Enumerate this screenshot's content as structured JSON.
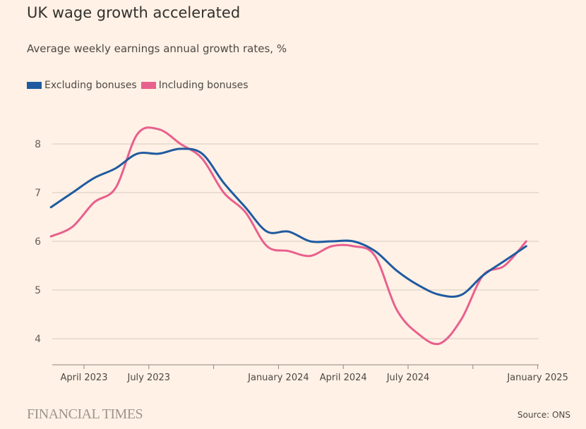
{
  "header": {
    "title": "UK wage growth accelerated",
    "subtitle": "Average weekly earnings annual growth rates, %"
  },
  "footer": {
    "brand": "FINANCIAL TIMES",
    "source": "Source: ONS"
  },
  "chart_data": {
    "type": "line",
    "title": "UK wage growth accelerated",
    "subtitle": "Average weekly earnings annual growth rates, %",
    "xlabel": "",
    "ylabel": "",
    "x": [
      "2023-02",
      "2023-03",
      "2023-04",
      "2023-05",
      "2023-06",
      "2023-07",
      "2023-08",
      "2023-09",
      "2023-10",
      "2023-11",
      "2023-12",
      "2024-01",
      "2024-02",
      "2024-03",
      "2024-04",
      "2024-05",
      "2024-06",
      "2024-07",
      "2024-08",
      "2024-09",
      "2024-10",
      "2024-11",
      "2024-12"
    ],
    "series": [
      {
        "name": "Excluding bonuses",
        "color": "#1f5aa0",
        "values": [
          6.7,
          7.0,
          7.3,
          7.5,
          7.8,
          7.8,
          7.9,
          7.8,
          7.2,
          6.7,
          6.2,
          6.2,
          6.0,
          6.0,
          6.0,
          5.8,
          5.4,
          5.1,
          4.9,
          4.9,
          5.3,
          5.6,
          5.9
        ]
      },
      {
        "name": "Including bonuses",
        "color": "#e8608e",
        "values": [
          6.1,
          6.3,
          6.8,
          7.1,
          8.2,
          8.3,
          8.0,
          7.7,
          7.0,
          6.6,
          5.9,
          5.8,
          5.7,
          5.9,
          5.9,
          5.7,
          4.6,
          4.1,
          3.9,
          4.4,
          5.3,
          5.5,
          6.0
        ]
      }
    ],
    "yticks": [
      4,
      5,
      6,
      7,
      8
    ],
    "ylim": [
      3.5,
      8.9
    ],
    "xlim": [
      "2023-02",
      "2025-01"
    ],
    "xticks": [
      {
        "date": "2023-04",
        "label": "April 2023"
      },
      {
        "date": "2023-07",
        "label": "July 2023"
      },
      {
        "date": "2023-10",
        "label": ""
      },
      {
        "date": "2024-01",
        "label": "January 2024"
      },
      {
        "date": "2024-04",
        "label": "April 2024"
      },
      {
        "date": "2024-07",
        "label": "July 2024"
      },
      {
        "date": "2024-10",
        "label": ""
      },
      {
        "date": "2025-01",
        "label": "January 2025"
      }
    ],
    "grid": true,
    "legend": "top-left"
  }
}
